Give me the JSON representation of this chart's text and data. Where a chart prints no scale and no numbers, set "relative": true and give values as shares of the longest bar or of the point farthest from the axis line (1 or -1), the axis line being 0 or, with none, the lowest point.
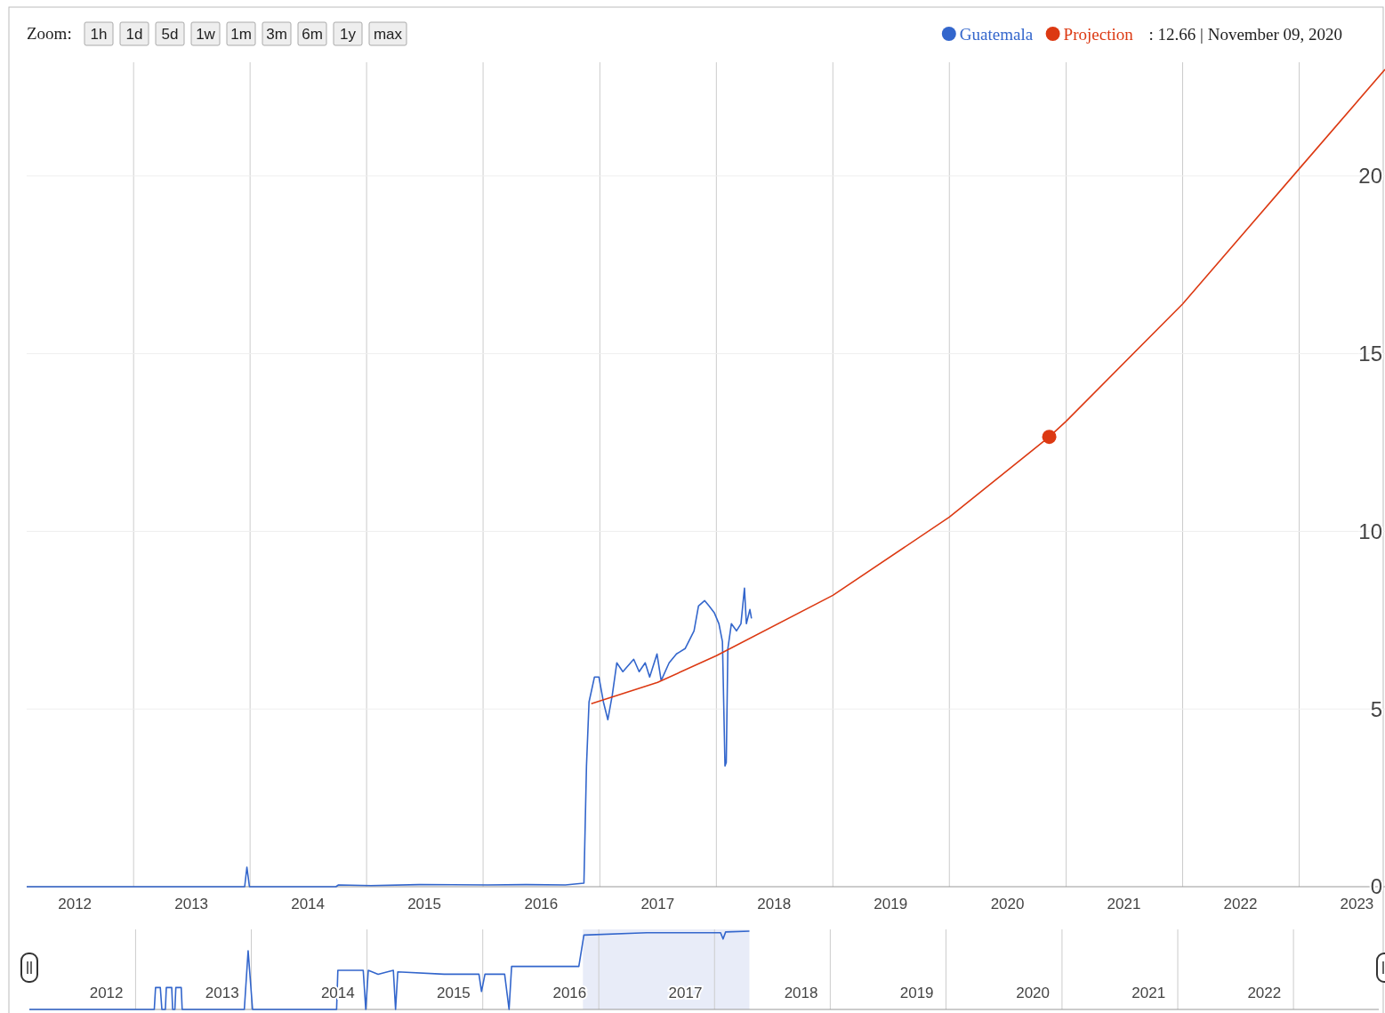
{
  "chart_data": [
    {
      "type": "line",
      "legend": "top right",
      "grid": true,
      "annotations": [
        "Zoom:",
        "1h",
        "1d",
        "5d",
        "1w",
        "1m",
        "3m",
        "6m",
        "1y",
        "max",
        ": 12.66 | November 09, 2020"
      ],
      "xlim": [
        "2012-02-01",
        "2023-09-27"
      ],
      "ylim": [
        0,
        23.2
      ],
      "yticks": [
        0,
        5,
        10,
        15,
        20
      ],
      "xticks": [
        {
          "value": "2012-07-01",
          "label": "2012"
        },
        {
          "value": "2013-01-01",
          "label": null
        },
        {
          "value": "2013-07-01",
          "label": "2013"
        },
        {
          "value": "2014-01-01",
          "label": null
        },
        {
          "value": "2014-07-01",
          "label": "2014"
        },
        {
          "value": "2015-01-01",
          "label": null
        },
        {
          "value": "2015-07-01",
          "label": "2015"
        },
        {
          "value": "2016-01-01",
          "label": null
        },
        {
          "value": "2016-07-01",
          "label": "2016"
        },
        {
          "value": "2017-01-01",
          "label": null
        },
        {
          "value": "2017-07-01",
          "label": "2017"
        },
        {
          "value": "2018-01-01",
          "label": null
        },
        {
          "value": "2018-07-01",
          "label": "2018"
        },
        {
          "value": "2019-01-01",
          "label": null
        },
        {
          "value": "2019-07-01",
          "label": "2019"
        },
        {
          "value": "2020-01-01",
          "label": null
        },
        {
          "value": "2020-07-01",
          "label": "2020"
        },
        {
          "value": "2021-01-01",
          "label": null
        },
        {
          "value": "2021-07-01",
          "label": "2021"
        },
        {
          "value": "2022-01-01",
          "label": null
        },
        {
          "value": "2022-07-01",
          "label": "2022"
        },
        {
          "value": "2023-01-01",
          "label": null
        },
        {
          "value": "2023-07-01",
          "label": "2023"
        }
      ],
      "series": [
        {
          "name": "Guatemala",
          "color": "#3366cc",
          "x": [
            "2012-02-01",
            "2013-12-15",
            "2013-12-22",
            "2013-12-30",
            "2014-09-27",
            "2014-10-05",
            "2015-01-15",
            "2015-06-15",
            "2016-01-15",
            "2016-05-15",
            "2016-09-15",
            "2016-11-12",
            "2016-11-20",
            "2016-11-28",
            "2016-12-15",
            "2016-12-29",
            "2017-01-12",
            "2017-01-26",
            "2017-02-09",
            "2017-02-23",
            "2017-03-14",
            "2017-04-17",
            "2017-05-04",
            "2017-05-23",
            "2017-06-06",
            "2017-06-29",
            "2017-07-12",
            "2017-08-06",
            "2017-08-29",
            "2017-09-25",
            "2017-10-23",
            "2017-11-06",
            "2017-11-25",
            "2017-12-09",
            "2017-12-26",
            "2018-01-09",
            "2018-01-20",
            "2018-01-28",
            "2018-02-01",
            "2018-02-06",
            "2018-02-17",
            "2018-03-05",
            "2018-03-19",
            "2018-03-30",
            "2018-04-05",
            "2018-04-16",
            "2018-04-21"
          ],
          "values": [
            0,
            0,
            0.55,
            0,
            0,
            0.05,
            0.03,
            0.06,
            0.05,
            0.06,
            0.05,
            0.1,
            3.4,
            5.2,
            5.9,
            5.9,
            5.2,
            4.7,
            5.4,
            6.3,
            6.05,
            6.4,
            6.05,
            6.3,
            5.9,
            6.55,
            5.8,
            6.3,
            6.55,
            6.7,
            7.2,
            7.9,
            8.05,
            7.9,
            7.7,
            7.4,
            6.9,
            3.4,
            3.5,
            6.7,
            7.4,
            7.2,
            7.4,
            8.4,
            7.4,
            7.8,
            7.55
          ]
        },
        {
          "name": "Projection",
          "color": "#dc3912",
          "x": [
            "2016-12-05",
            "2017-07-01",
            "2018-01-01",
            "2019-01-01",
            "2020-01-01",
            "2020-11-09",
            "2021-01-01",
            "2022-01-01",
            "2023-01-01",
            "2023-09-27"
          ],
          "values": [
            5.15,
            5.75,
            6.5,
            8.2,
            10.4,
            12.66,
            13.1,
            16.4,
            20.2,
            23.0
          ]
        },
        {
          "type": "scatter",
          "marker": "circle",
          "color": "#dc3912",
          "x": [
            "2020-11-09"
          ],
          "values": [
            12.66
          ]
        }
      ]
    },
    {
      "type": "line",
      "relative": true,
      "grid": "x",
      "tick_labels": "x",
      "xlim": [
        "2012-02-01",
        "2023-09-27"
      ],
      "xticks": [
        {
          "value": "2012-10-01",
          "label": "2012"
        },
        {
          "value": "2013-01-01",
          "label": null
        },
        {
          "value": "2013-10-01",
          "label": "2013"
        },
        {
          "value": "2014-01-01",
          "label": null
        },
        {
          "value": "2014-10-01",
          "label": "2014"
        },
        {
          "value": "2015-01-01",
          "label": null
        },
        {
          "value": "2015-10-01",
          "label": "2015"
        },
        {
          "value": "2016-01-01",
          "label": null
        },
        {
          "value": "2016-10-01",
          "label": "2016"
        },
        {
          "value": "2017-01-01",
          "label": null
        },
        {
          "value": "2017-10-01",
          "label": "2017"
        },
        {
          "value": "2018-01-01",
          "label": null
        },
        {
          "value": "2018-10-01",
          "label": "2018"
        },
        {
          "value": "2019-01-01",
          "label": null
        },
        {
          "value": "2019-10-01",
          "label": "2019"
        },
        {
          "value": "2020-01-01",
          "label": null
        },
        {
          "value": "2020-10-01",
          "label": "2020"
        },
        {
          "value": "2021-01-01",
          "label": null
        },
        {
          "value": "2021-10-01",
          "label": "2021"
        },
        {
          "value": "2022-01-01",
          "label": null
        },
        {
          "value": "2022-10-01",
          "label": "2022"
        },
        {
          "value": "2023-01-01",
          "label": null
        }
      ],
      "bands": [
        {
          "axis": "x",
          "from": "2016-11-12",
          "to": "2018-04-21",
          "color": "#e8ecf8"
        }
      ],
      "series": [
        {
          "color": "#3366cc",
          "x": [
            "2012-02-01",
            "2013-03-01",
            "2013-03-05",
            "2013-03-20",
            "2013-03-25",
            "2013-04-05",
            "2013-04-08",
            "2013-04-25",
            "2013-04-28",
            "2013-05-05",
            "2013-05-08",
            "2013-05-25",
            "2013-05-28",
            "2013-12-10",
            "2013-12-22",
            "2014-01-05",
            "2014-09-27",
            "2014-10-01",
            "2014-12-20",
            "2014-12-28",
            "2015-01-05",
            "2015-02-05",
            "2015-03-25",
            "2015-04-01",
            "2015-04-08",
            "2015-09-01",
            "2015-12-20",
            "2015-12-28",
            "2016-01-08",
            "2016-03-10",
            "2016-03-24",
            "2016-04-01",
            "2016-10-30",
            "2016-11-15",
            "2017-06-01",
            "2018-01-20",
            "2018-01-28",
            "2018-02-05",
            "2018-04-21"
          ],
          "values": [
            0,
            0,
            0.28,
            0.28,
            0,
            0,
            0.28,
            0.28,
            0,
            0,
            0.28,
            0.28,
            0,
            0,
            0.75,
            0,
            0,
            0.5,
            0.5,
            0,
            0.5,
            0.45,
            0.5,
            0,
            0.48,
            0.45,
            0.45,
            0.23,
            0.45,
            0.45,
            0,
            0.55,
            0.55,
            0.95,
            0.98,
            0.98,
            0.9,
            0.99,
            1
          ]
        }
      ]
    }
  ]
}
